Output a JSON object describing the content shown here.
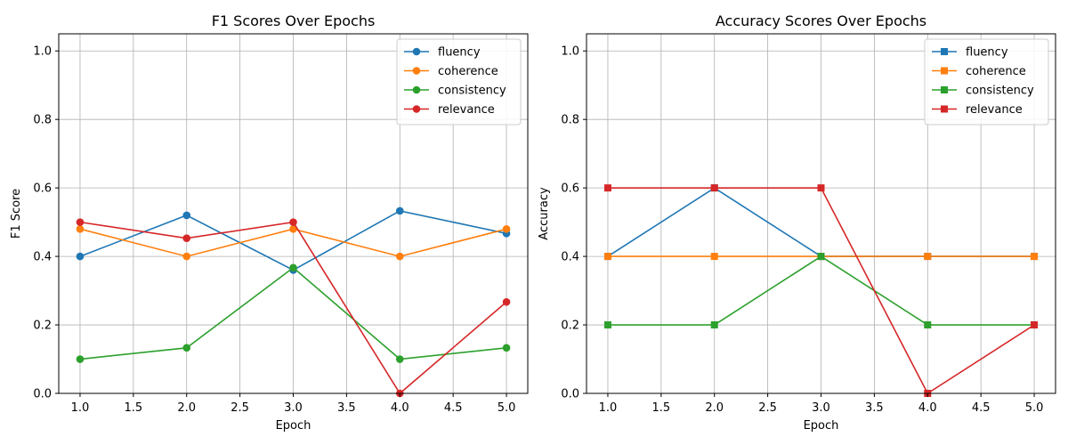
{
  "chart_data": [
    {
      "type": "line",
      "title": "F1 Scores Over Epochs",
      "xlabel": "Epoch",
      "ylabel": "F1 Score",
      "xlim": [
        0.8,
        5.2
      ],
      "ylim": [
        0,
        1.05
      ],
      "xticks": [
        "1.0",
        "1.5",
        "2.0",
        "2.5",
        "3.0",
        "3.5",
        "4.0",
        "4.5",
        "5.0"
      ],
      "yticks": [
        "0.0",
        "0.2",
        "0.4",
        "0.6",
        "0.8",
        "1.0"
      ],
      "grid": true,
      "legend_position": "top-right",
      "marker": "circle",
      "x": [
        1,
        2,
        3,
        4,
        5
      ],
      "series": [
        {
          "name": "fluency",
          "color": "#1f77b4",
          "values": [
            0.4,
            0.52,
            0.36,
            0.533,
            0.467
          ]
        },
        {
          "name": "coherence",
          "color": "#ff7f0e",
          "values": [
            0.48,
            0.4,
            0.48,
            0.4,
            0.48
          ]
        },
        {
          "name": "consistency",
          "color": "#2ca02c",
          "values": [
            0.1,
            0.133,
            0.367,
            0.1,
            0.133
          ]
        },
        {
          "name": "relevance",
          "color": "#d62728",
          "values": [
            0.5,
            0.453,
            0.5,
            0.0,
            0.267
          ]
        }
      ]
    },
    {
      "type": "line",
      "title": "Accuracy Scores Over Epochs",
      "xlabel": "Epoch",
      "ylabel": "Accuracy",
      "xlim": [
        0.8,
        5.2
      ],
      "ylim": [
        0,
        1.05
      ],
      "xticks": [
        "1.0",
        "1.5",
        "2.0",
        "2.5",
        "3.0",
        "3.5",
        "4.0",
        "4.5",
        "5.0"
      ],
      "yticks": [
        "0.0",
        "0.2",
        "0.4",
        "0.6",
        "0.8",
        "1.0"
      ],
      "grid": true,
      "legend_position": "top-right",
      "marker": "square",
      "x": [
        1,
        2,
        3,
        4,
        5
      ],
      "series": [
        {
          "name": "fluency",
          "color": "#1f77b4",
          "values": [
            0.4,
            0.6,
            0.4,
            0.4,
            0.4
          ]
        },
        {
          "name": "coherence",
          "color": "#ff7f0e",
          "values": [
            0.4,
            0.4,
            0.4,
            0.4,
            0.4
          ]
        },
        {
          "name": "consistency",
          "color": "#2ca02c",
          "values": [
            0.2,
            0.2,
            0.4,
            0.2,
            0.2
          ]
        },
        {
          "name": "relevance",
          "color": "#d62728",
          "values": [
            0.6,
            0.6,
            0.6,
            0.0,
            0.2
          ]
        }
      ]
    }
  ]
}
